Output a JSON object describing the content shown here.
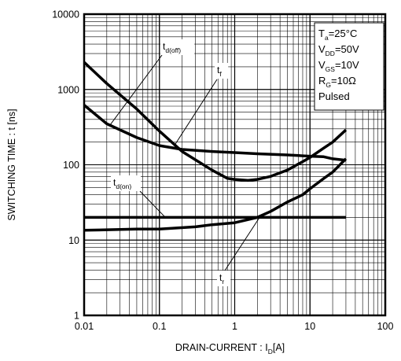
{
  "chart_data": {
    "type": "line",
    "xlabel": {
      "main": "DRAIN-CURRENT : I",
      "sub": "D",
      "unit": "[A]"
    },
    "ylabel": "SWITCHING TIME : t [ns]",
    "x_scale": "log",
    "y_scale": "log",
    "xlim": [
      0.01,
      100
    ],
    "ylim": [
      1,
      10000
    ],
    "x_ticks": [
      0.01,
      0.1,
      1,
      10,
      100
    ],
    "x_tick_labels": [
      "0.01",
      "0.1",
      "1",
      "10",
      "100"
    ],
    "y_ticks": [
      1,
      10,
      100,
      1000,
      10000
    ],
    "y_tick_labels": [
      "1",
      "10",
      "100",
      "1000",
      "10000"
    ],
    "grid": true,
    "legend": "none",
    "series": [
      {
        "label": {
          "main": "t",
          "sub": "d(off)"
        },
        "points": [
          [
            0.01,
            620
          ],
          [
            0.02,
            350
          ],
          [
            0.05,
            230
          ],
          [
            0.1,
            180
          ],
          [
            0.2,
            160
          ],
          [
            0.5,
            150
          ],
          [
            1,
            145
          ],
          [
            2,
            140
          ],
          [
            5,
            135
          ],
          [
            10,
            130
          ],
          [
            15,
            128
          ],
          [
            20,
            120
          ],
          [
            30,
            115
          ]
        ]
      },
      {
        "label": {
          "main": "t",
          "sub": "f"
        },
        "points": [
          [
            0.01,
            2300
          ],
          [
            0.02,
            1200
          ],
          [
            0.05,
            550
          ],
          [
            0.1,
            280
          ],
          [
            0.2,
            150
          ],
          [
            0.5,
            85
          ],
          [
            0.8,
            66
          ],
          [
            1,
            64
          ],
          [
            1.5,
            62
          ],
          [
            2,
            64
          ],
          [
            3,
            70
          ],
          [
            5,
            85
          ],
          [
            8,
            110
          ],
          [
            10,
            125
          ],
          [
            15,
            165
          ],
          [
            20,
            200
          ],
          [
            30,
            290
          ]
        ]
      },
      {
        "label": {
          "main": "t",
          "sub": "d(on)"
        },
        "points": [
          [
            0.01,
            20
          ],
          [
            0.1,
            20
          ],
          [
            1,
            20
          ],
          [
            10,
            20
          ],
          [
            30,
            20
          ]
        ]
      },
      {
        "label": {
          "main": "t",
          "sub": "r"
        },
        "points": [
          [
            0.01,
            13.5
          ],
          [
            0.05,
            14
          ],
          [
            0.1,
            14
          ],
          [
            0.3,
            15
          ],
          [
            0.5,
            16
          ],
          [
            1,
            17
          ],
          [
            2,
            20
          ],
          [
            3,
            24
          ],
          [
            5,
            32
          ],
          [
            8,
            40
          ],
          [
            10,
            48
          ],
          [
            15,
            65
          ],
          [
            20,
            80
          ],
          [
            30,
            120
          ]
        ]
      }
    ],
    "conditions": [
      {
        "main": "T",
        "sub": "a",
        "rest": "=25°C"
      },
      {
        "main": "V",
        "sub": "DD",
        "rest": "=50V"
      },
      {
        "main": "V",
        "sub": "GS",
        "rest": "=10V"
      },
      {
        "main": "R",
        "sub": "G",
        "rest": "=10Ω"
      },
      {
        "main": "Pulsed",
        "sub": "",
        "rest": ""
      }
    ]
  }
}
